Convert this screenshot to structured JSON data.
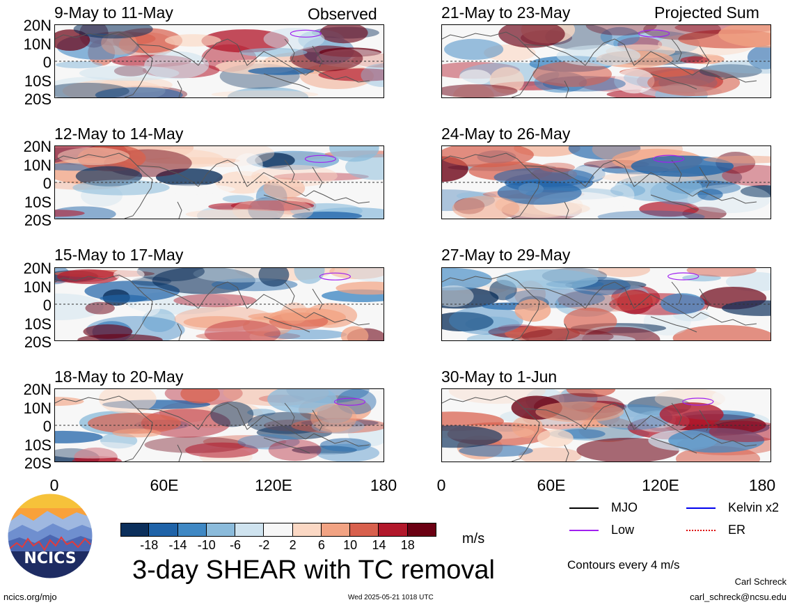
{
  "corner_labels": {
    "observed": "Observed",
    "projected": "Projected Sum"
  },
  "panels": [
    {
      "title": "9-May to 11-May",
      "column": "observed"
    },
    {
      "title": "12-May to 14-May",
      "column": "observed"
    },
    {
      "title": "15-May to 17-May",
      "column": "observed"
    },
    {
      "title": "18-May to 20-May",
      "column": "observed"
    },
    {
      "title": "21-May to 23-May",
      "column": "projected"
    },
    {
      "title": "24-May to 26-May",
      "column": "projected"
    },
    {
      "title": "27-May to 29-May",
      "column": "projected"
    },
    {
      "title": "30-May to 1-Jun",
      "column": "projected"
    }
  ],
  "lat_labels": [
    "20N",
    "10N",
    "0",
    "10S",
    "20S"
  ],
  "lon_labels": [
    "0",
    "60E",
    "120E",
    "180"
  ],
  "colorbar": {
    "colors": [
      "#0b2f5b",
      "#1f63a8",
      "#3f88c4",
      "#8bbbdb",
      "#cfe3ef",
      "#f7f7f7",
      "#fbd8c4",
      "#f2a383",
      "#d8604d",
      "#b2182b",
      "#6b0013"
    ],
    "ticks": [
      "-18",
      "-14",
      "-10",
      "-6",
      "-2",
      "2",
      "6",
      "10",
      "14",
      "18"
    ],
    "units": "m/s"
  },
  "chart_title": "3-day SHEAR with TC removal",
  "legend": [
    {
      "label": "MJO",
      "color": "#000000",
      "style": "solid"
    },
    {
      "label": "Kelvin x2",
      "color": "#0000ee",
      "style": "solid"
    },
    {
      "label": "Low",
      "color": "#a020f0",
      "style": "solid"
    },
    {
      "label": "ER",
      "color": "#dd0000",
      "style": "dotted"
    }
  ],
  "contours_note": "Contours every 4 m/s",
  "logo_text": "NCICS",
  "footer": {
    "url": "ncics.org/mjo",
    "timestamp": "Wed 2025-05-21 1018 UTC",
    "author": "Carl Schreck",
    "email": "carl_schreck@ncsu.edu"
  }
}
